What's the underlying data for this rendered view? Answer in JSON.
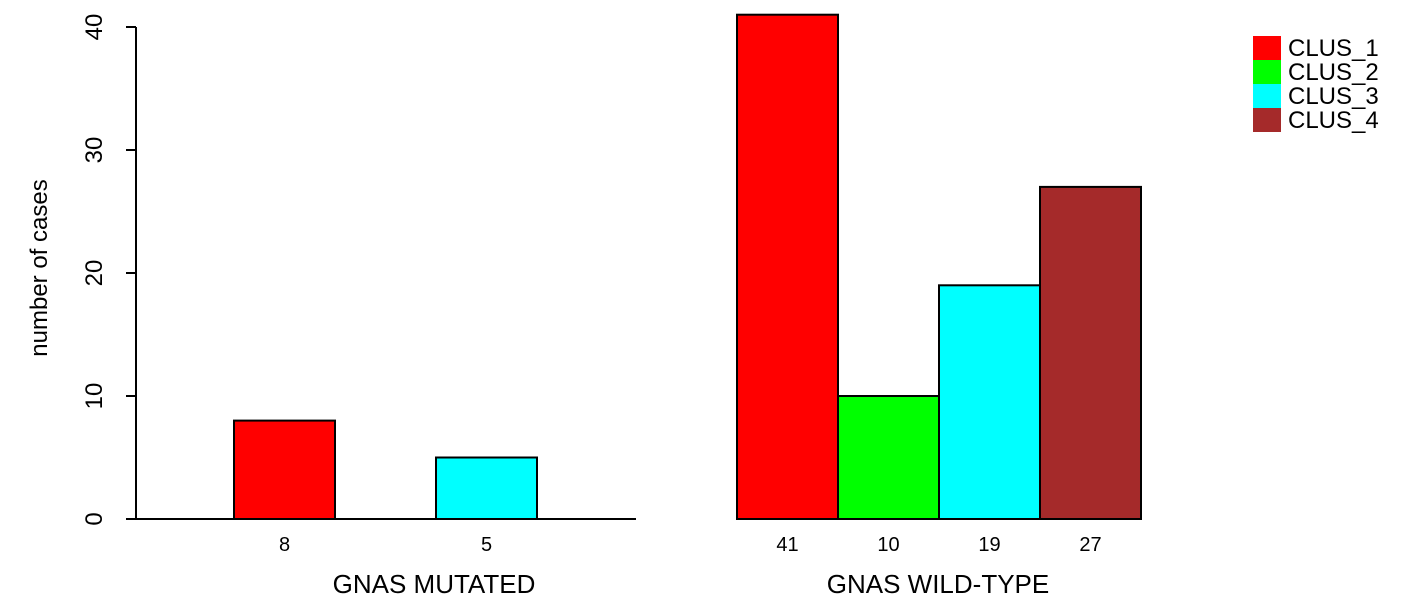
{
  "chart_data": {
    "type": "bar",
    "ylabel": "number of cases",
    "ylim": [
      0,
      41
    ],
    "yticks": [
      0,
      10,
      20,
      30,
      40
    ],
    "groups": [
      {
        "label": "GNAS MUTATED",
        "values": [
          8,
          0,
          5,
          0
        ],
        "bar_labels": [
          "8",
          "",
          "5",
          ""
        ]
      },
      {
        "label": "GNAS WILD-TYPE",
        "values": [
          41,
          10,
          19,
          27
        ],
        "bar_labels": [
          "41",
          "10",
          "19",
          "27"
        ]
      }
    ],
    "series": [
      {
        "name": "CLUS_1",
        "color": "#ff0000"
      },
      {
        "name": "CLUS_2",
        "color": "#00ff00"
      },
      {
        "name": "CLUS_3",
        "color": "#00ffff"
      },
      {
        "name": "CLUS_4",
        "color": "#a52a2a"
      }
    ],
    "legend_position": "top-right",
    "grid": false
  }
}
